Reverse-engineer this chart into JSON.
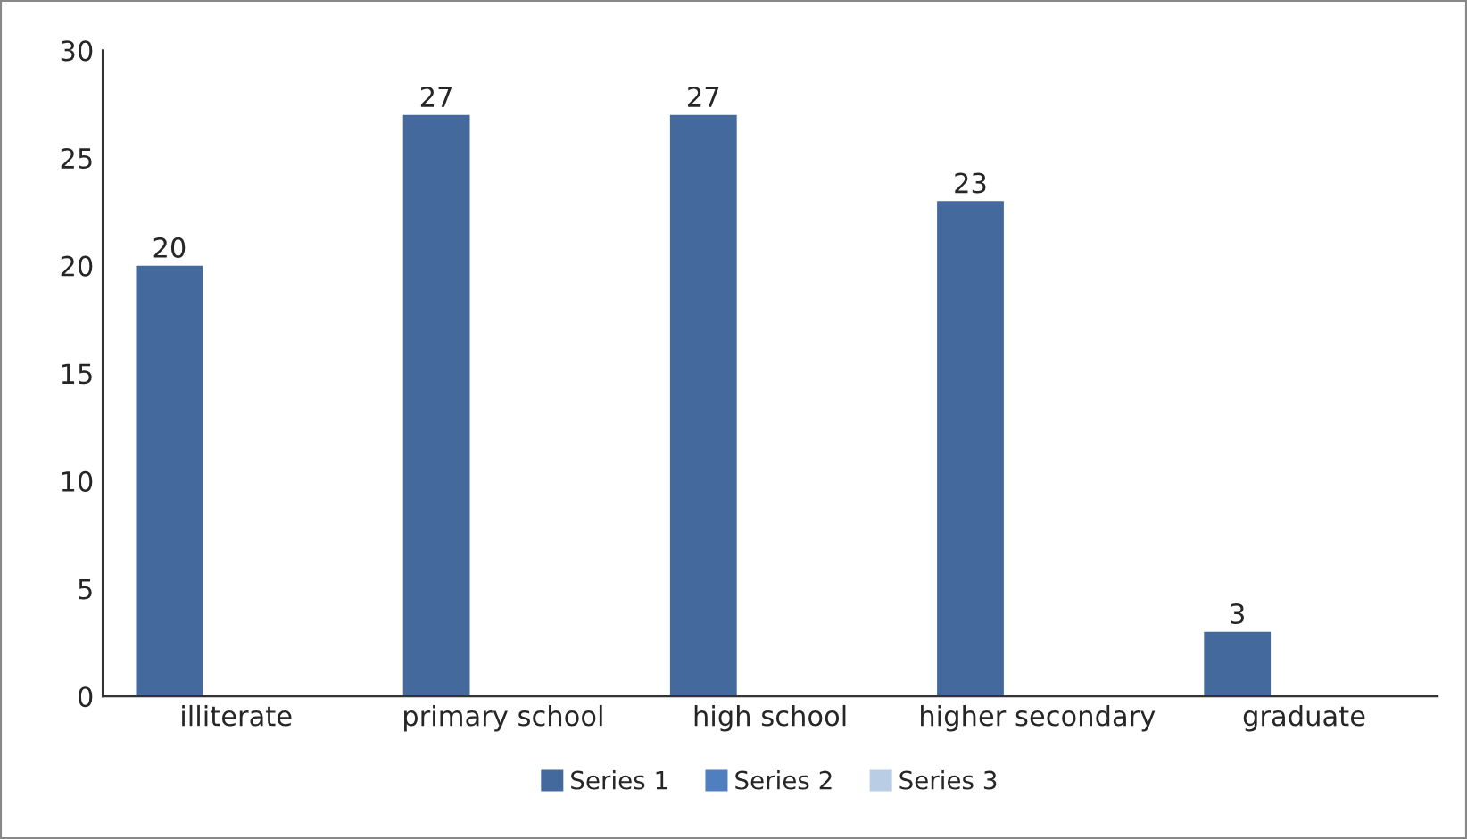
{
  "chart_data": {
    "type": "bar",
    "categories": [
      "illiterate",
      "primary school",
      "high school",
      "higher secondary",
      "graduate"
    ],
    "series": [
      {
        "name": "Series 1",
        "color": "#44699d",
        "values": [
          20,
          27,
          27,
          23,
          3
        ]
      },
      {
        "name": "Series 2",
        "color": "#4f7fbf",
        "values": [
          null,
          null,
          null,
          null,
          null
        ]
      },
      {
        "name": "Series 3",
        "color": "#b9cde5",
        "values": [
          null,
          null,
          null,
          null,
          null
        ]
      }
    ],
    "ylim": [
      0,
      30
    ],
    "yticks": [
      0,
      5,
      10,
      15,
      20,
      25,
      30
    ],
    "grid": false,
    "legend": "bottom",
    "data_labels": true
  }
}
